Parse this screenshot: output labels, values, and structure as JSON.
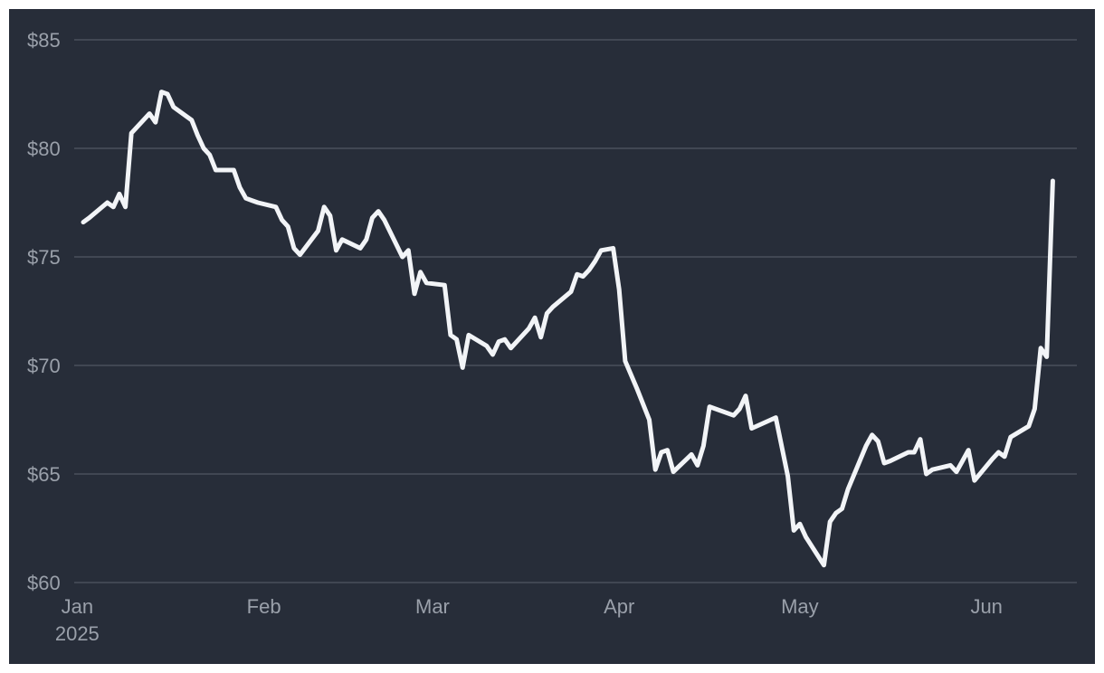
{
  "chart_data": {
    "type": "line",
    "background": "#272d39",
    "line_color": "#f2f4f7",
    "grid": true,
    "ylim": [
      60,
      85
    ],
    "y_ticks": [
      {
        "value": 85,
        "label": "$85"
      },
      {
        "value": 80,
        "label": "$80"
      },
      {
        "value": 75,
        "label": "$75"
      },
      {
        "value": 70,
        "label": "$70"
      },
      {
        "value": 65,
        "label": "$65"
      },
      {
        "value": 60,
        "label": "$60"
      }
    ],
    "xlim": [
      "2025-01-01",
      "2025-06-14"
    ],
    "x_ticks": [
      {
        "date": "2025-01-01",
        "label": "Jan",
        "sublabel": "2025"
      },
      {
        "date": "2025-02-01",
        "label": "Feb"
      },
      {
        "date": "2025-03-01",
        "label": "Mar"
      },
      {
        "date": "2025-04-01",
        "label": "Apr"
      },
      {
        "date": "2025-05-01",
        "label": "May"
      },
      {
        "date": "2025-06-01",
        "label": "Jun"
      }
    ],
    "series": [
      {
        "points": [
          [
            "2025-01-02",
            76.6
          ],
          [
            "2025-01-03",
            76.8
          ],
          [
            "2025-01-06",
            77.5
          ],
          [
            "2025-01-07",
            77.3
          ],
          [
            "2025-01-08",
            77.9
          ],
          [
            "2025-01-09",
            77.3
          ],
          [
            "2025-01-10",
            80.7
          ],
          [
            "2025-01-13",
            81.6
          ],
          [
            "2025-01-14",
            81.2
          ],
          [
            "2025-01-15",
            82.6
          ],
          [
            "2025-01-16",
            82.5
          ],
          [
            "2025-01-17",
            81.9
          ],
          [
            "2025-01-20",
            81.3
          ],
          [
            "2025-01-21",
            80.6
          ],
          [
            "2025-01-22",
            80.0
          ],
          [
            "2025-01-23",
            79.7
          ],
          [
            "2025-01-24",
            79.0
          ],
          [
            "2025-01-27",
            79.0
          ],
          [
            "2025-01-28",
            78.2
          ],
          [
            "2025-01-29",
            77.7
          ],
          [
            "2025-01-30",
            77.6
          ],
          [
            "2025-01-31",
            77.5
          ],
          [
            "2025-02-03",
            77.3
          ],
          [
            "2025-02-04",
            76.7
          ],
          [
            "2025-02-05",
            76.4
          ],
          [
            "2025-02-06",
            75.4
          ],
          [
            "2025-02-07",
            75.1
          ],
          [
            "2025-02-10",
            76.2
          ],
          [
            "2025-02-11",
            77.3
          ],
          [
            "2025-02-12",
            76.9
          ],
          [
            "2025-02-13",
            75.3
          ],
          [
            "2025-02-14",
            75.8
          ],
          [
            "2025-02-17",
            75.4
          ],
          [
            "2025-02-18",
            75.8
          ],
          [
            "2025-02-19",
            76.8
          ],
          [
            "2025-02-20",
            77.1
          ],
          [
            "2025-02-21",
            76.7
          ],
          [
            "2025-02-24",
            75.0
          ],
          [
            "2025-02-25",
            75.3
          ],
          [
            "2025-02-26",
            73.3
          ],
          [
            "2025-02-27",
            74.3
          ],
          [
            "2025-02-28",
            73.8
          ],
          [
            "2025-03-03",
            73.7
          ],
          [
            "2025-03-04",
            71.4
          ],
          [
            "2025-03-05",
            71.2
          ],
          [
            "2025-03-06",
            69.9
          ],
          [
            "2025-03-07",
            71.4
          ],
          [
            "2025-03-10",
            70.9
          ],
          [
            "2025-03-11",
            70.5
          ],
          [
            "2025-03-12",
            71.1
          ],
          [
            "2025-03-13",
            71.2
          ],
          [
            "2025-03-14",
            70.8
          ],
          [
            "2025-03-17",
            71.7
          ],
          [
            "2025-03-18",
            72.2
          ],
          [
            "2025-03-19",
            71.3
          ],
          [
            "2025-03-20",
            72.4
          ],
          [
            "2025-03-21",
            72.7
          ],
          [
            "2025-03-24",
            73.4
          ],
          [
            "2025-03-25",
            74.2
          ],
          [
            "2025-03-26",
            74.1
          ],
          [
            "2025-03-27",
            74.4
          ],
          [
            "2025-03-28",
            74.8
          ],
          [
            "2025-03-29",
            75.3
          ],
          [
            "2025-03-31",
            75.4
          ],
          [
            "2025-04-01",
            73.5
          ],
          [
            "2025-04-02",
            70.2
          ],
          [
            "2025-04-04",
            68.9
          ],
          [
            "2025-04-06",
            67.5
          ],
          [
            "2025-04-07",
            65.2
          ],
          [
            "2025-04-08",
            66.0
          ],
          [
            "2025-04-09",
            66.1
          ],
          [
            "2025-04-10",
            65.1
          ],
          [
            "2025-04-13",
            65.9
          ],
          [
            "2025-04-14",
            65.4
          ],
          [
            "2025-04-15",
            66.3
          ],
          [
            "2025-04-16",
            68.1
          ],
          [
            "2025-04-20",
            67.7
          ],
          [
            "2025-04-21",
            68.0
          ],
          [
            "2025-04-22",
            68.6
          ],
          [
            "2025-04-23",
            67.1
          ],
          [
            "2025-04-27",
            67.6
          ],
          [
            "2025-04-29",
            64.9
          ],
          [
            "2025-04-30",
            62.4
          ],
          [
            "2025-05-01",
            62.7
          ],
          [
            "2025-05-02",
            62.1
          ],
          [
            "2025-05-05",
            60.8
          ],
          [
            "2025-05-06",
            62.8
          ],
          [
            "2025-05-07",
            63.2
          ],
          [
            "2025-05-08",
            63.4
          ],
          [
            "2025-05-09",
            64.3
          ],
          [
            "2025-05-12",
            66.3
          ],
          [
            "2025-05-13",
            66.8
          ],
          [
            "2025-05-14",
            66.5
          ],
          [
            "2025-05-15",
            65.5
          ],
          [
            "2025-05-16",
            65.6
          ],
          [
            "2025-05-19",
            66.0
          ],
          [
            "2025-05-20",
            66.0
          ],
          [
            "2025-05-21",
            66.6
          ],
          [
            "2025-05-22",
            65.0
          ],
          [
            "2025-05-23",
            65.2
          ],
          [
            "2025-05-26",
            65.4
          ],
          [
            "2025-05-27",
            65.1
          ],
          [
            "2025-05-28",
            65.6
          ],
          [
            "2025-05-29",
            66.1
          ],
          [
            "2025-05-30",
            64.7
          ],
          [
            "2025-06-02",
            65.7
          ],
          [
            "2025-06-03",
            66.0
          ],
          [
            "2025-06-04",
            65.8
          ],
          [
            "2025-06-05",
            66.7
          ],
          [
            "2025-06-08",
            67.2
          ],
          [
            "2025-06-09",
            68.0
          ],
          [
            "2025-06-10",
            70.8
          ],
          [
            "2025-06-11",
            70.4
          ],
          [
            "2025-06-12",
            78.5
          ]
        ]
      }
    ]
  }
}
